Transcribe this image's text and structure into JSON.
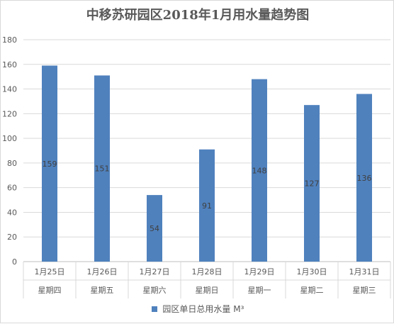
{
  "chart_data": {
    "type": "bar",
    "title": "中移苏研园区2018年1月用水量趋势图",
    "categories": [
      "1月25日",
      "1月26日",
      "1月27日",
      "1月28日",
      "1月29日",
      "1月30日",
      "1月31日"
    ],
    "weekdays": [
      "星期四",
      "星期五",
      "星期六",
      "星期日",
      "星期一",
      "星期二",
      "星期三"
    ],
    "series": [
      {
        "name": "园区单日总用水量  M³",
        "values": [
          159,
          151,
          54,
          91,
          148,
          127,
          136
        ],
        "color": "#4f81bd"
      }
    ],
    "yticks": [
      0,
      20,
      40,
      60,
      80,
      100,
      120,
      140,
      160,
      180
    ],
    "ylim": [
      0,
      180
    ],
    "grid": true,
    "legend_position": "bottom"
  }
}
